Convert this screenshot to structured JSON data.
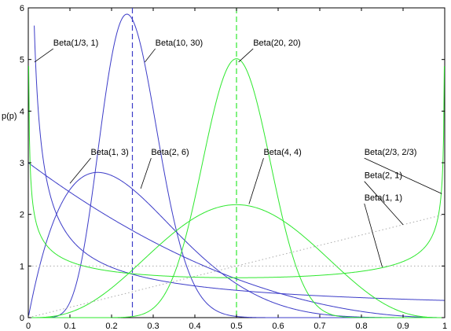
{
  "chart_data": {
    "type": "line",
    "title": "",
    "xlabel": "",
    "ylabel": "p(p)",
    "xlim": [
      0,
      1
    ],
    "ylim": [
      0,
      6
    ],
    "grid": false,
    "x_ticks": [
      "0",
      "0.1",
      "0.2",
      "0.3",
      "0.4",
      "0.5",
      "0.6",
      "0.7",
      "0.8",
      "0.9",
      "1"
    ],
    "y_ticks": [
      "0",
      "1",
      "2",
      "3",
      "4",
      "5",
      "6"
    ],
    "colors": {
      "blue": "#3c3cc8",
      "green": "#2ee82e",
      "dotted": "#aaaaaa"
    },
    "series": [
      {
        "name": "Beta(1/3, 1)",
        "a": 0.3333,
        "b": 1,
        "color": "blue",
        "style": "solid",
        "label_at": [
          0.015,
          4.95
        ],
        "text_at": [
          0.06,
          5.27
        ]
      },
      {
        "name": "Beta(10, 30)",
        "a": 10,
        "b": 30,
        "color": "blue",
        "style": "solid",
        "label_at": [
          0.28,
          4.95
        ],
        "text_at": [
          0.305,
          5.27
        ]
      },
      {
        "name": "Beta(1, 3)",
        "a": 1,
        "b": 3,
        "color": "blue",
        "style": "solid",
        "label_at": [
          0.1,
          2.6
        ],
        "text_at": [
          0.15,
          3.15
        ]
      },
      {
        "name": "Beta(2, 6)",
        "a": 2,
        "b": 6,
        "color": "blue",
        "style": "solid",
        "label_at": [
          0.27,
          2.5
        ],
        "text_at": [
          0.295,
          3.15
        ]
      },
      {
        "name": "Beta(20, 20)",
        "a": 20,
        "b": 20,
        "color": "green",
        "style": "solid",
        "label_at": [
          0.505,
          4.95
        ],
        "text_at": [
          0.54,
          5.27
        ]
      },
      {
        "name": "Beta(4, 4)",
        "a": 4,
        "b": 4,
        "color": "green",
        "style": "solid",
        "label_at": [
          0.53,
          2.2
        ],
        "text_at": [
          0.565,
          3.15
        ]
      },
      {
        "name": "Beta(2/3, 2/3)",
        "a": 0.6667,
        "b": 0.6667,
        "color": "green",
        "style": "solid",
        "label_at": [
          0.993,
          2.4
        ],
        "text_at": [
          0.807,
          3.15
        ]
      },
      {
        "name": "Beta(2, 1)",
        "a": 2,
        "b": 1,
        "color": "dotted",
        "style": "dotted",
        "label_at": [
          0.9,
          1.8
        ],
        "text_at": [
          0.807,
          2.7
        ]
      },
      {
        "name": "Beta(1, 1)",
        "a": 1,
        "b": 1,
        "color": "dotted",
        "style": "dotted",
        "label_at": [
          0.85,
          0.98
        ],
        "text_at": [
          0.807,
          2.27
        ]
      }
    ],
    "vlines": [
      {
        "x": 0.25,
        "color": "blue"
      },
      {
        "x": 0.5,
        "color": "green"
      }
    ]
  }
}
